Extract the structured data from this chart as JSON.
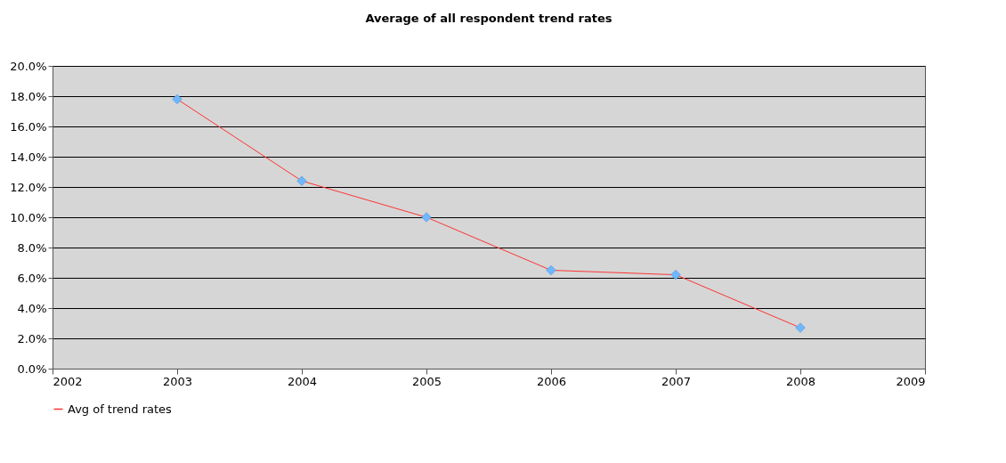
{
  "chart_data": {
    "type": "line",
    "title": "Average of all respondent trend rates",
    "x": [
      2003,
      2004,
      2005,
      2006,
      2007,
      2008
    ],
    "series": [
      {
        "name": "Avg of trend rates",
        "color": "#ff3333",
        "values": [
          0.178,
          0.124,
          0.1,
          0.065,
          0.062,
          0.027
        ]
      }
    ],
    "xlim": [
      2002,
      2009
    ],
    "xticks": [
      2002,
      2003,
      2004,
      2005,
      2006,
      2007,
      2008,
      2009
    ],
    "ylim": [
      0,
      0.2
    ],
    "yticks": [
      {
        "value": 0,
        "label": "0.0%"
      },
      {
        "value": 0.02,
        "label": "2.0%"
      },
      {
        "value": 0.04,
        "label": "4.0%"
      },
      {
        "value": 0.06,
        "label": "6.0%"
      },
      {
        "value": 0.08,
        "label": "8.0%"
      },
      {
        "value": 0.1,
        "label": "10.0%"
      },
      {
        "value": 0.12,
        "label": "12.0%"
      },
      {
        "value": 0.14,
        "label": "14.0%"
      },
      {
        "value": 0.16,
        "label": "16.0%"
      },
      {
        "value": 0.18,
        "label": "18.0%"
      },
      {
        "value": 0.2,
        "label": "20.0%"
      }
    ],
    "grid": "y",
    "legend": "bottom",
    "marker": "diamond",
    "line_style": "solid"
  }
}
